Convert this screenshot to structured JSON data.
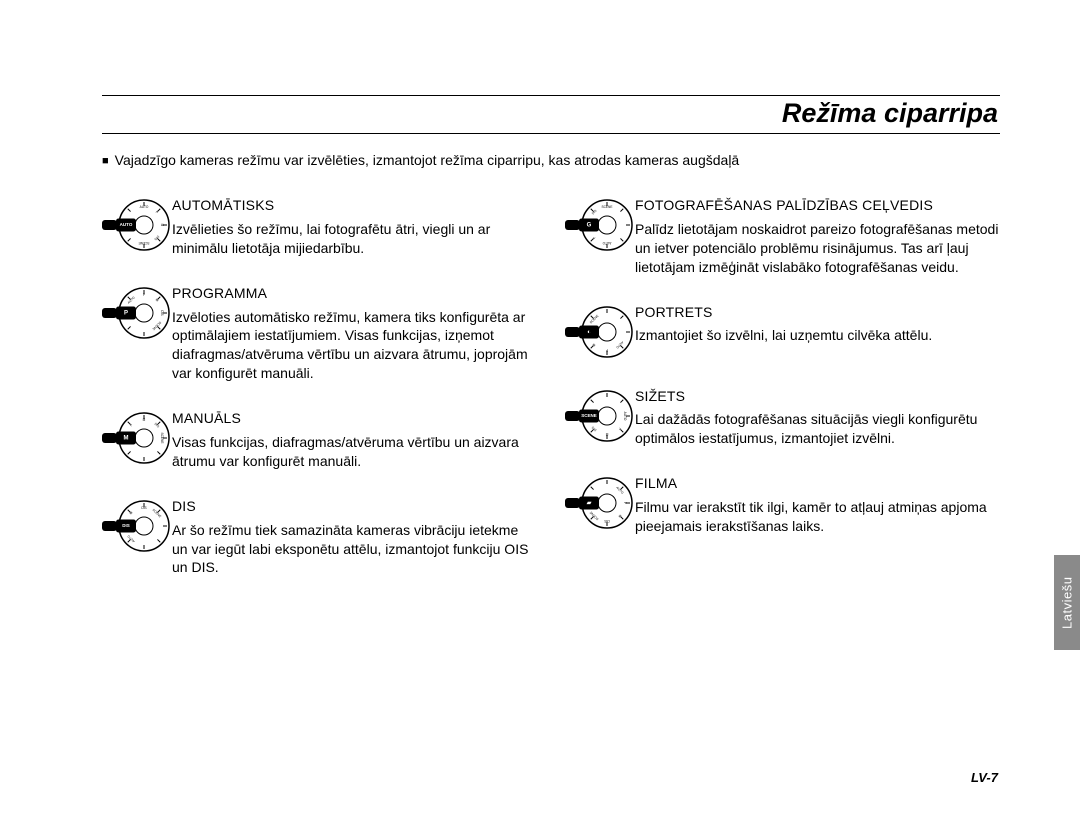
{
  "title": "Režīma ciparripa",
  "intro_bullet": "■",
  "intro": "Vajadzīgo kameras režīmu var izvēlēties, izmantojot režīma ciparripu, kas atrodas kameras augšdaļā",
  "sidetab": "Latviešu",
  "pagenum": "LV-7",
  "dial_labels": [
    "AUTO",
    "P",
    "M",
    "DIS",
    "SCENE"
  ],
  "dial_colors": {
    "ring_fill": "#ffffff",
    "ring_stroke": "#000000",
    "pointer_fill": "#000000",
    "pointer_text": "#ffffff",
    "highlight_fill": "#000000",
    "highlight_text": "#ffffff"
  },
  "left": [
    {
      "title": "AUTOMĀTISKS",
      "body": "Izvēlieties šo režīmu, lai fotografētu ātri, viegli un ar minimālu lietotāja mijiedarbību.",
      "pointer": "AUTO",
      "angle": 0
    },
    {
      "title": "PROGRAMMA",
      "body": "Izvēloties automātisko režīmu, kamera tiks konfigurēta ar optimālajiem iestatījumiem. Visas funkcijas, izņemot diafragmas/atvēruma vērtību un aizvara ātrumu, joprojām var konfigurēt manuāli.",
      "pointer": "P",
      "angle": 45
    },
    {
      "title": "MANUĀLS",
      "body": "Visas funkcijas, diafragmas/atvēruma vērtību un aizvara ātrumu var konfigurēt manuāli.",
      "pointer": "M",
      "angle": 90
    },
    {
      "title": "DIS",
      "body": "Ar šo režīmu tiek samazināta kameras vibrāciju ietekme un var iegūt labi eksponētu attēlu, izmantojot funkciju OIS un DIS.",
      "pointer": "DIS",
      "angle": 135
    }
  ],
  "right": [
    {
      "title": "FOTOGRAFĒŠANAS PALĪDZĪBAS CEĻVEDIS",
      "body": "Palīdz lietotājam noskaidrot pareizo fotografēšanas metodi un ietver potenciālo problēmu risinājumus. Tas arī ļauj lietotājam izmēģināt vislabāko fotografēšanas veidu.",
      "pointer": "G",
      "angle": 180
    },
    {
      "title": "PORTRETS",
      "body": "Izmantojiet šo izvēlni, lai uzņemtu cilvēka attēlu.",
      "pointer": "◐",
      "angle": 225
    },
    {
      "title": "SIŽETS",
      "body": "Lai dažādās fotografēšanas situācijās viegli konfigurētu optimālos iestatījumus, izmantojiet izvēlni.",
      "pointer": "SCENE",
      "angle": 270
    },
    {
      "title": "FILMA",
      "body": "Filmu var ierakstīt tik ilgi, kamēr to atļauj atmiņas apjoma pieejamais ierakstīšanas laiks.",
      "pointer": "▰",
      "angle": 315
    }
  ]
}
